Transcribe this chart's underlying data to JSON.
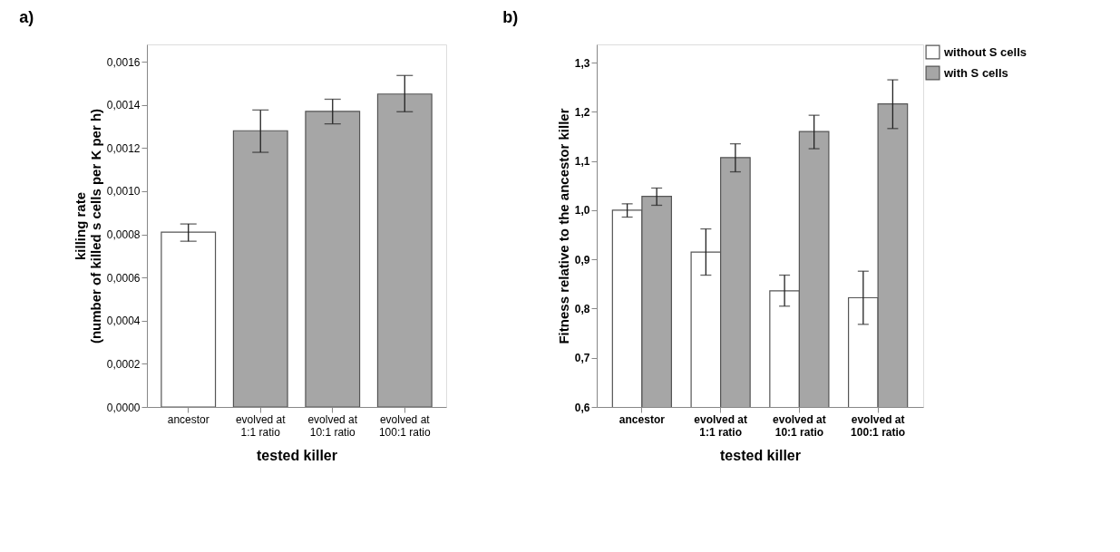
{
  "chart_data": [
    {
      "type": "bar",
      "title": "a)",
      "xlabel": "tested killer",
      "ylabel": "killing rate\n(number of killed s cells per K per h)",
      "categories": [
        "ancestor",
        "evolved at\n1:1 ratio",
        "evolved at\n10:1 ratio",
        "evolved at\n100:1 ratio"
      ],
      "values": [
        0.00081,
        0.00128,
        0.00137,
        0.00145
      ],
      "colors": [
        "#ffffff",
        "#a6a6a6",
        "#a6a6a6",
        "#a6a6a6"
      ],
      "errors": [
        [
          0.000768,
          0.000848
        ],
        [
          0.00118,
          0.001376
        ],
        [
          0.001312,
          0.001426
        ],
        [
          0.001368,
          0.001536
        ]
      ],
      "ylim": [
        0,
        0.00168
      ],
      "yticks": [
        {
          "value": 0,
          "label": "0,0000"
        },
        {
          "value": 0.0002,
          "label": "0,0002"
        },
        {
          "value": 0.0004,
          "label": "0,0004"
        },
        {
          "value": 0.0006,
          "label": "0,0006"
        },
        {
          "value": 0.0008,
          "label": "0,0008"
        },
        {
          "value": 0.001,
          "label": "0,0010"
        },
        {
          "value": 0.0012,
          "label": "0,0012"
        },
        {
          "value": 0.0014,
          "label": "0,0014"
        },
        {
          "value": 0.0016,
          "label": "0,0016"
        }
      ],
      "grid": false
    },
    {
      "type": "bar",
      "title": "b)",
      "xlabel": "tested killer",
      "ylabel": "Fitness relative to the ancestor killer",
      "categories": [
        "ancestor",
        "evolved at\n1:1 ratio",
        "evolved at\n10:1 ratio",
        "evolved at\n100:1 ratio"
      ],
      "series": [
        {
          "name": "without S cells",
          "color": "#ffffff",
          "values": [
            1.0,
            0.915,
            0.836,
            0.822
          ],
          "errors": [
            [
              0.986,
              1.013
            ],
            [
              0.868,
              0.962
            ],
            [
              0.805,
              0.868
            ],
            [
              0.768,
              0.876
            ]
          ]
        },
        {
          "name": "with S cells",
          "color": "#a6a6a6",
          "values": [
            1.028,
            1.107,
            1.16,
            1.216
          ],
          "errors": [
            [
              1.01,
              1.045
            ],
            [
              1.078,
              1.135
            ],
            [
              1.125,
              1.193
            ],
            [
              1.166,
              1.265
            ]
          ]
        }
      ],
      "ylim": [
        0.6,
        1.337
      ],
      "yticks": [
        {
          "value": 0.6,
          "label": "0,6"
        },
        {
          "value": 0.7,
          "label": "0,7"
        },
        {
          "value": 0.8,
          "label": "0,8"
        },
        {
          "value": 0.9,
          "label": "0,9"
        },
        {
          "value": 1.0,
          "label": "1,0"
        },
        {
          "value": 1.1,
          "label": "1,1"
        },
        {
          "value": 1.2,
          "label": "1,2"
        },
        {
          "value": 1.3,
          "label": "1,3"
        }
      ],
      "grid": false,
      "legend": "top right"
    }
  ]
}
